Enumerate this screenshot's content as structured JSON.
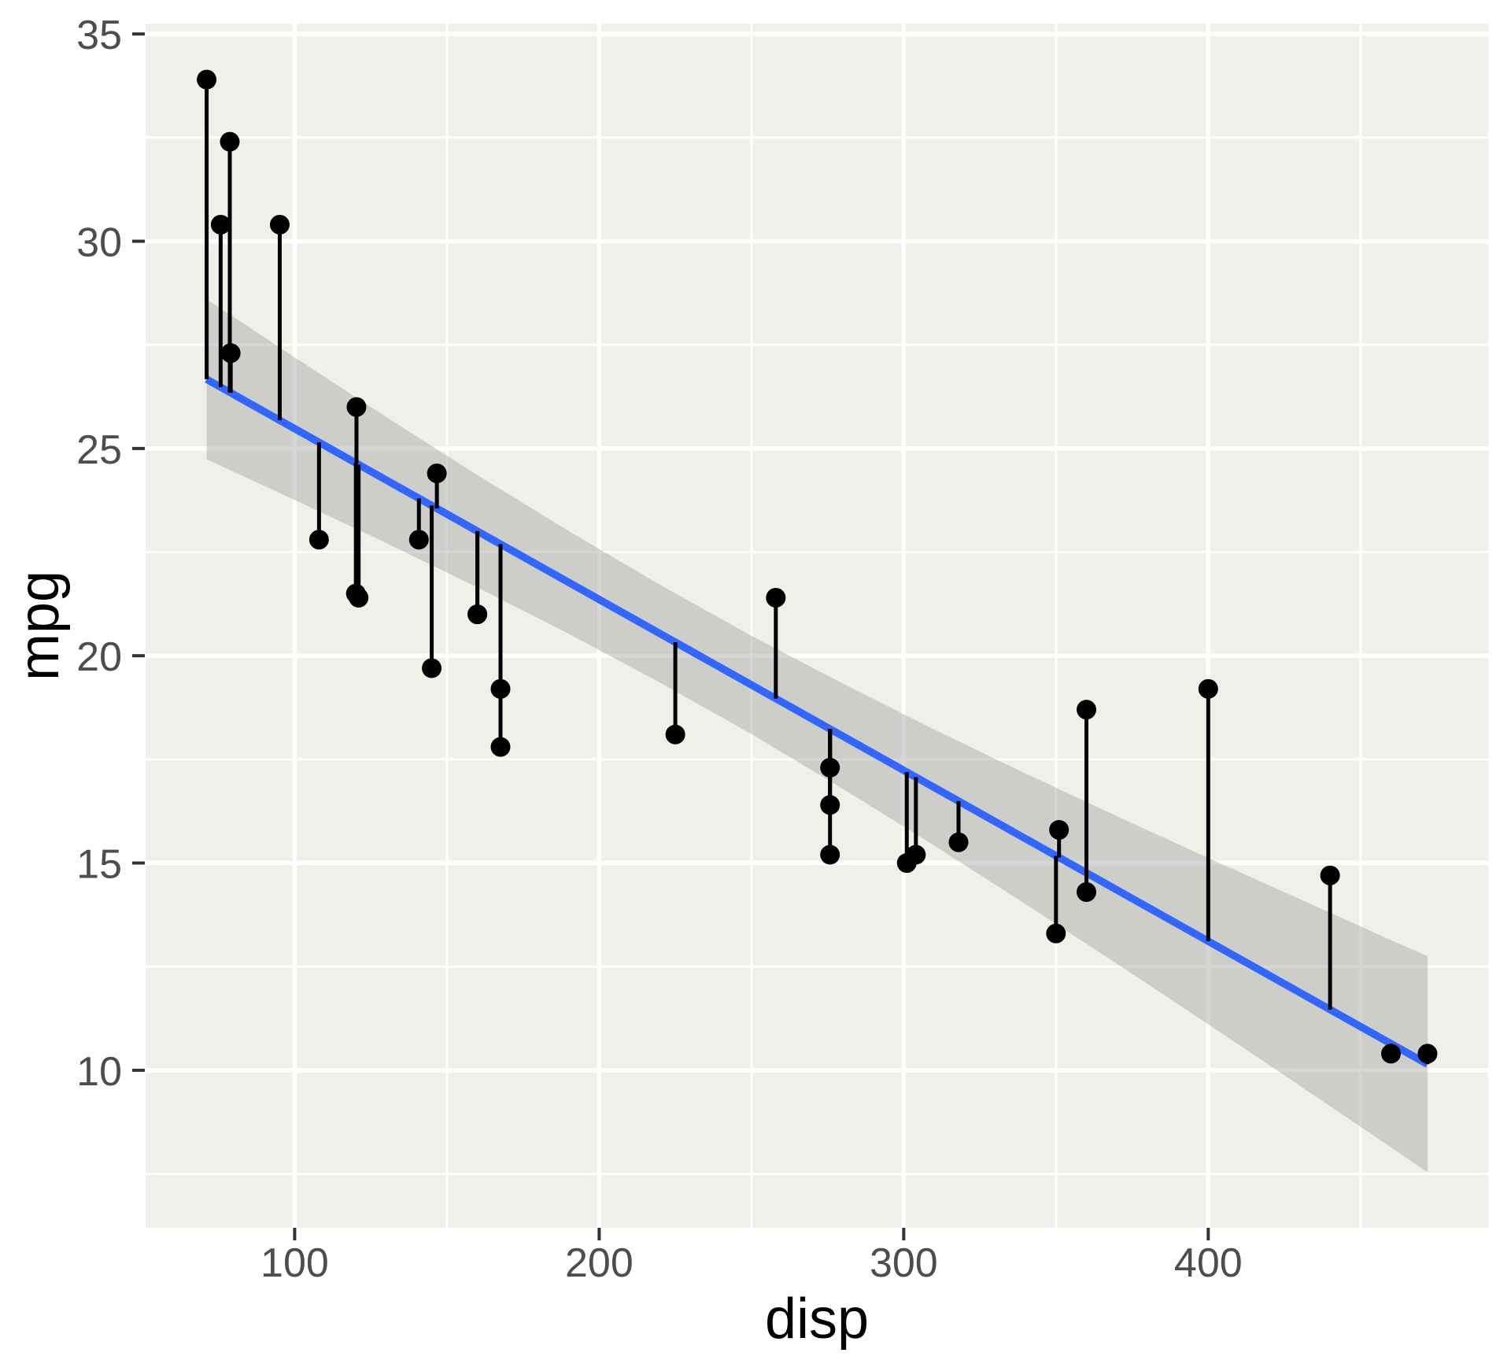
{
  "figure": {
    "background": "#FFFFFF",
    "panel_background": "#F0F0EA",
    "grid_color": "#FFFFFF",
    "tick_mark_color": "#333333",
    "tick_label_color": "#4D4D4D",
    "axis_title_color": "#000000"
  },
  "chart_data": {
    "type": "scatter",
    "title": "",
    "xlabel": "disp",
    "ylabel": "mpg",
    "legend_position": "none",
    "grid": true,
    "x_axis": {
      "ticks": [
        100,
        200,
        300,
        400
      ],
      "minor_ticks": [
        150,
        250,
        350,
        450
      ],
      "range": [
        51.05,
        492.05
      ]
    },
    "y_axis": {
      "ticks": [
        10,
        15,
        20,
        25,
        30,
        35
      ],
      "minor_ticks": [
        7.5,
        12.5,
        17.5,
        22.5,
        27.5,
        32.5
      ],
      "range": [
        6.2,
        35.25
      ]
    },
    "point_color": "#000000",
    "point_radius_px": 12.5,
    "segment_color": "#000000",
    "points": [
      [
        160.0,
        21.0
      ],
      [
        160.0,
        21.0
      ],
      [
        108.0,
        22.8
      ],
      [
        258.0,
        21.4
      ],
      [
        360.0,
        18.7
      ],
      [
        225.0,
        18.1
      ],
      [
        360.0,
        14.3
      ],
      [
        146.7,
        24.4
      ],
      [
        140.8,
        22.8
      ],
      [
        167.6,
        19.2
      ],
      [
        167.6,
        17.8
      ],
      [
        275.8,
        16.4
      ],
      [
        275.8,
        17.3
      ],
      [
        275.8,
        15.2
      ],
      [
        472.0,
        10.4
      ],
      [
        460.0,
        10.4
      ],
      [
        440.0,
        14.7
      ],
      [
        78.7,
        32.4
      ],
      [
        75.7,
        30.4
      ],
      [
        71.1,
        33.9
      ],
      [
        120.1,
        21.5
      ],
      [
        318.0,
        15.5
      ],
      [
        304.0,
        15.2
      ],
      [
        350.0,
        13.3
      ],
      [
        400.0,
        19.2
      ],
      [
        79.0,
        27.3
      ],
      [
        120.3,
        26.0
      ],
      [
        95.1,
        30.4
      ],
      [
        351.0,
        15.8
      ],
      [
        145.0,
        19.7
      ],
      [
        301.0,
        15.0
      ],
      [
        121.0,
        21.4
      ]
    ],
    "regression_line": {
      "method": "lm",
      "color": "#3366FF",
      "intercept": 29.59985,
      "slope": -0.041215,
      "x_start": 71.1,
      "x_end": 472.0
    },
    "residual_segments": true,
    "confidence_band": {
      "fill": "#999999",
      "opacity": 0.4,
      "x": [
        71.1,
        100,
        130,
        160,
        190,
        220,
        250,
        280,
        310,
        340,
        370,
        400,
        430,
        460,
        472
      ],
      "upper": [
        28.6,
        27.2,
        25.76,
        24.36,
        23.01,
        21.71,
        20.48,
        19.33,
        18.22,
        17.16,
        16.13,
        15.12,
        14.13,
        13.14,
        12.75
      ],
      "lower": [
        24.74,
        23.76,
        22.72,
        21.65,
        20.53,
        19.35,
        18.11,
        16.79,
        15.42,
        14.01,
        12.57,
        11.11,
        9.63,
        8.14,
        7.54
      ]
    }
  }
}
